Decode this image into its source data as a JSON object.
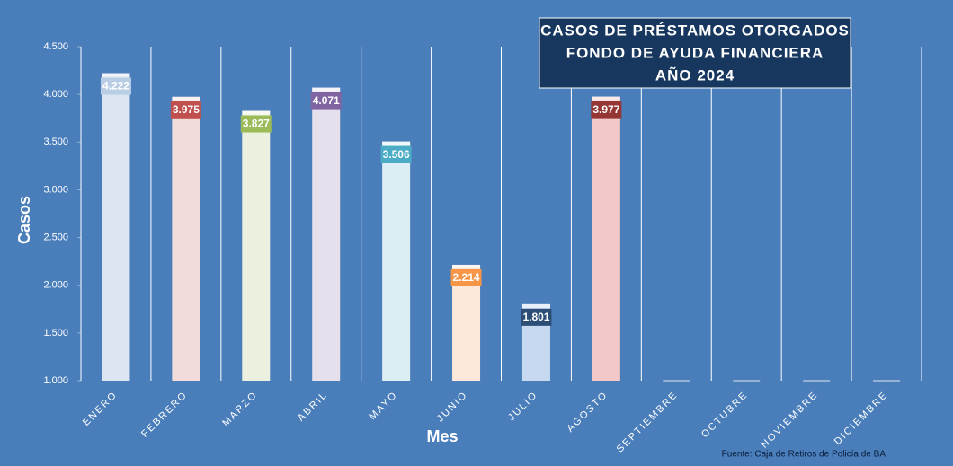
{
  "chart_data": {
    "type": "bar",
    "title": [
      "CASOS DE PRÉSTAMOS OTORGADOS",
      "FONDO DE AYUDA FINANCIERA",
      "AÑO 2024"
    ],
    "y_label": "Casos",
    "x_label": "Mes",
    "source": "Fuente: Caja de Retiros de Policía de BA",
    "categories": [
      "ENERO",
      "FEBRERO",
      "MARZO",
      "ABRIL",
      "MAYO",
      "JUNIO",
      "JULIO",
      "AGOSTO",
      "SEPTIEMBRE",
      "OCTUBRE",
      "NOVIEMBRE",
      "DICIEMBRE"
    ],
    "values": [
      4222,
      3975,
      3827,
      4071,
      3506,
      2214,
      1801,
      3977,
      null,
      null,
      null,
      null
    ],
    "value_labels": [
      "4.222",
      "3.975",
      "3.827",
      "4.071",
      "3.506",
      "2.214",
      "1.801",
      "3.977",
      null,
      null,
      null,
      null
    ],
    "colors": [
      "#dce6f2",
      "#f2dcdb",
      "#ebf1de",
      "#e5e0ec",
      "#dbeef4",
      "#fde9d9",
      "#c6d9f1",
      "#f2c9c8",
      "#dce6f2",
      "#dce6f2",
      "#dce6f2",
      "#dce6f2"
    ],
    "label_colors": [
      "#b9cde5",
      "#c0504d",
      "#9bbb59",
      "#8064a2",
      "#4bacc6",
      "#f79646",
      "#2c4d75",
      "#943634",
      "#b9cde5",
      "#b9cde5",
      "#b9cde5",
      "#b9cde5"
    ],
    "ylim": [
      1000,
      4500
    ],
    "yticks": [
      {
        "value": 1000,
        "label": "1.000"
      },
      {
        "value": 1500,
        "label": "1.500"
      },
      {
        "value": 2000,
        "label": "2.000"
      },
      {
        "value": 2500,
        "label": "2.500"
      },
      {
        "value": 3000,
        "label": "3.000"
      },
      {
        "value": 3500,
        "label": "3.500"
      },
      {
        "value": 4000,
        "label": "4.000"
      },
      {
        "value": 4500,
        "label": "4.500"
      }
    ],
    "grid": true
  }
}
